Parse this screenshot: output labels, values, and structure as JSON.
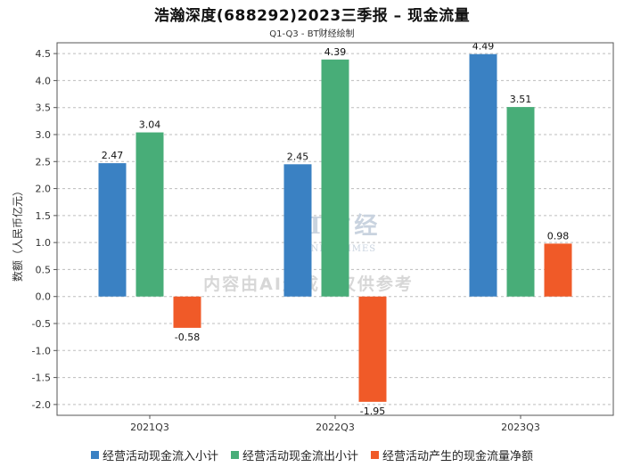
{
  "header": {
    "title": "浩瀚深度(688292)2023三季报 – 现金流量",
    "subtitle": "Q1-Q3 - BT财经绘制"
  },
  "watermark": {
    "brand": "BT财经",
    "brand_en": "BUSINESSTIMES",
    "ai_notice": "内容由AI生成，仅供参考"
  },
  "chart_data": {
    "type": "bar",
    "title": "浩瀚深度(688292)2023三季报 – 现金流量",
    "subtitle": "Q1-Q3 - BT财经绘制",
    "categories": [
      "2021Q3",
      "2022Q3",
      "2023Q3"
    ],
    "ylabel": "数额（人民币亿元）",
    "xlabel": "",
    "ylim": [
      -2.2,
      4.7
    ],
    "yticks": [
      "4.5",
      "4.0",
      "3.5",
      "3.0",
      "2.5",
      "2.0",
      "1.5",
      "1.0",
      "0.5",
      "0.0",
      "-0.5",
      "-1.0",
      "-1.5",
      "-2.0"
    ],
    "grid": true,
    "legend_position": "bottom",
    "series": [
      {
        "name": "经营活动现金流入小计",
        "color": "#3a81c3",
        "values": [
          2.47,
          2.45,
          4.49
        ]
      },
      {
        "name": "经营活动现金流出小计",
        "color": "#48ad78",
        "values": [
          3.04,
          4.39,
          3.51
        ]
      },
      {
        "name": "经营活动产生的现金流量净额",
        "color": "#f05a28",
        "values": [
          -0.58,
          -1.95,
          0.98
        ]
      }
    ]
  }
}
